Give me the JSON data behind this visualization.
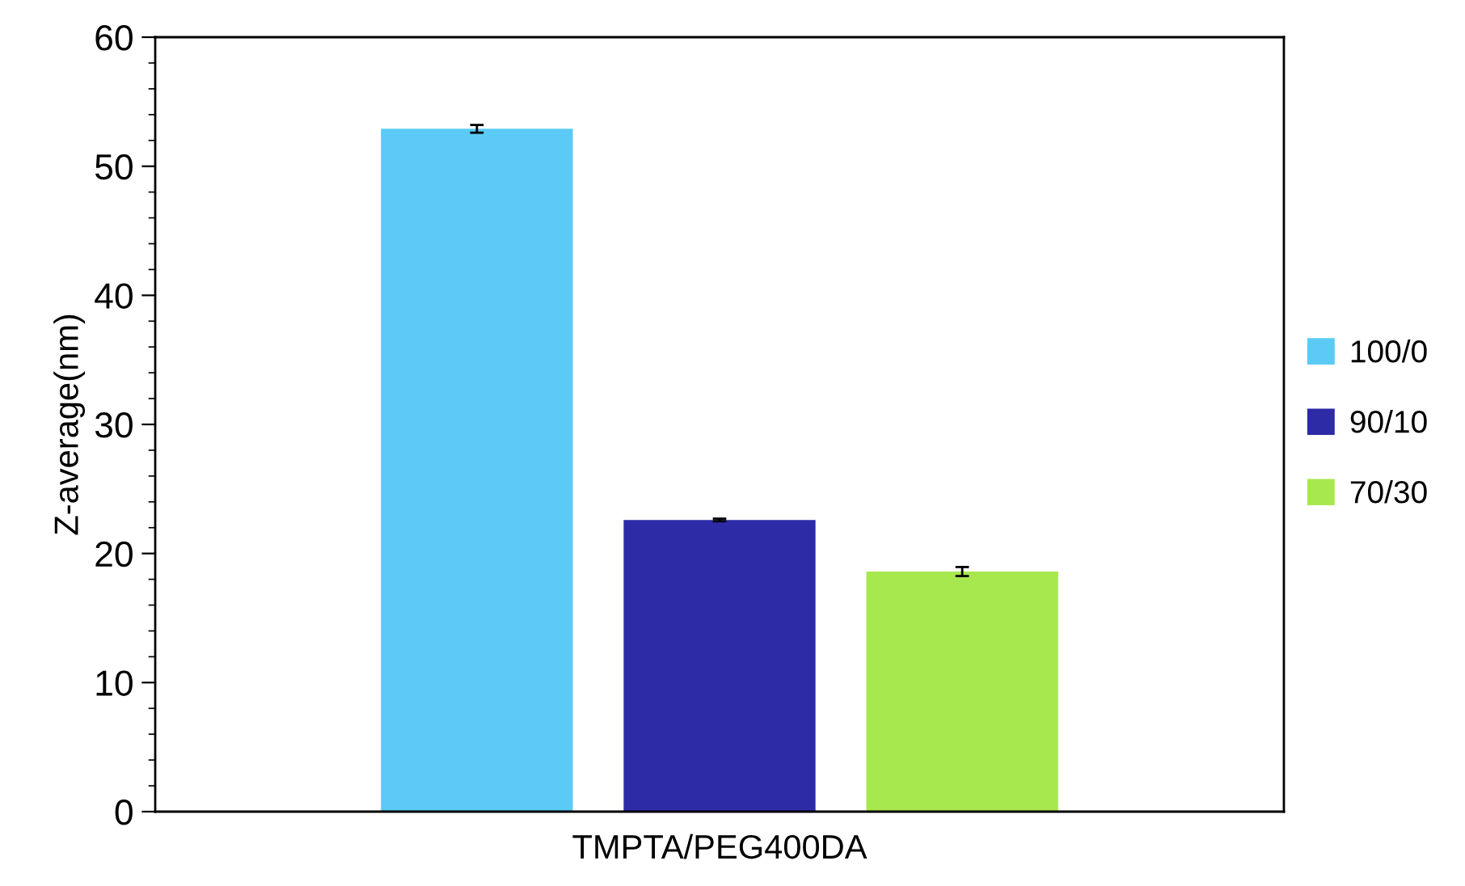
{
  "chart_data": {
    "type": "bar",
    "ylabel": "Z-average(nm)",
    "categories": [
      "TMPTA/PEG400DA"
    ],
    "ylim": [
      0,
      60
    ],
    "yticks": [
      0,
      10,
      20,
      30,
      40,
      50,
      60
    ],
    "legend": "right",
    "grid": false,
    "series": [
      {
        "name": "100/0",
        "color": "#5bcbf5",
        "values": [
          52.9
        ],
        "errors": [
          0.3
        ]
      },
      {
        "name": "90/10",
        "color": "#2e2ba6",
        "values": [
          22.6
        ],
        "errors": [
          0.1
        ]
      },
      {
        "name": "70/30",
        "color": "#a8e84f",
        "values": [
          18.6
        ],
        "errors": [
          0.35
        ]
      }
    ]
  }
}
